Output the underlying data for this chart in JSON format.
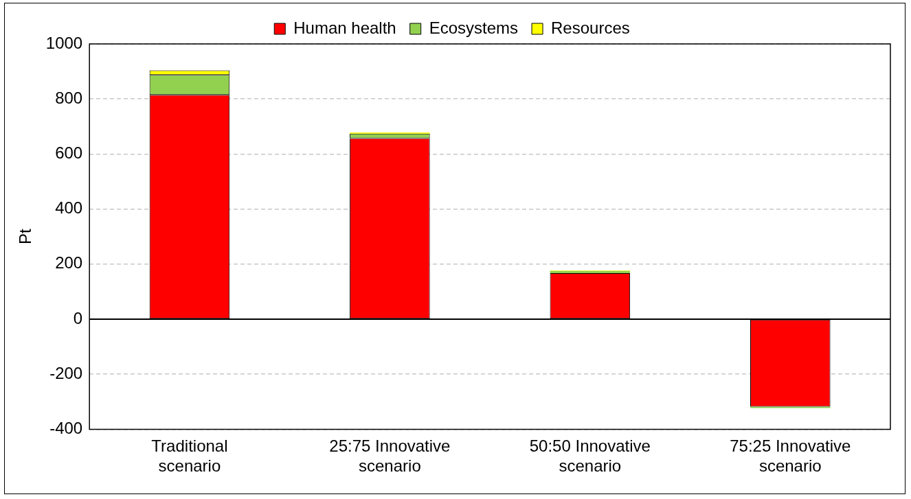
{
  "chart_data": {
    "type": "bar",
    "ylabel": "Pt",
    "stacked": true,
    "categories": [
      "Traditional scenario",
      "25:75 Innovative scenario",
      "50:50 Innovative scenario",
      "75:25 Innovative scenario"
    ],
    "series": [
      {
        "name": "Human health",
        "color": "#ff0000",
        "values": [
          815,
          657,
          167,
          -318
        ]
      },
      {
        "name": "Ecosystems",
        "color": "#92d050",
        "values": [
          72,
          17,
          8,
          -5
        ]
      },
      {
        "name": "Resources",
        "color": "#ffff00",
        "values": [
          17,
          4,
          2,
          null
        ]
      }
    ],
    "ylim": [
      -400,
      1000
    ],
    "yticks": [
      -400,
      -200,
      0,
      200,
      400,
      600,
      800,
      1000
    ],
    "grid": "y",
    "legend": "top"
  }
}
